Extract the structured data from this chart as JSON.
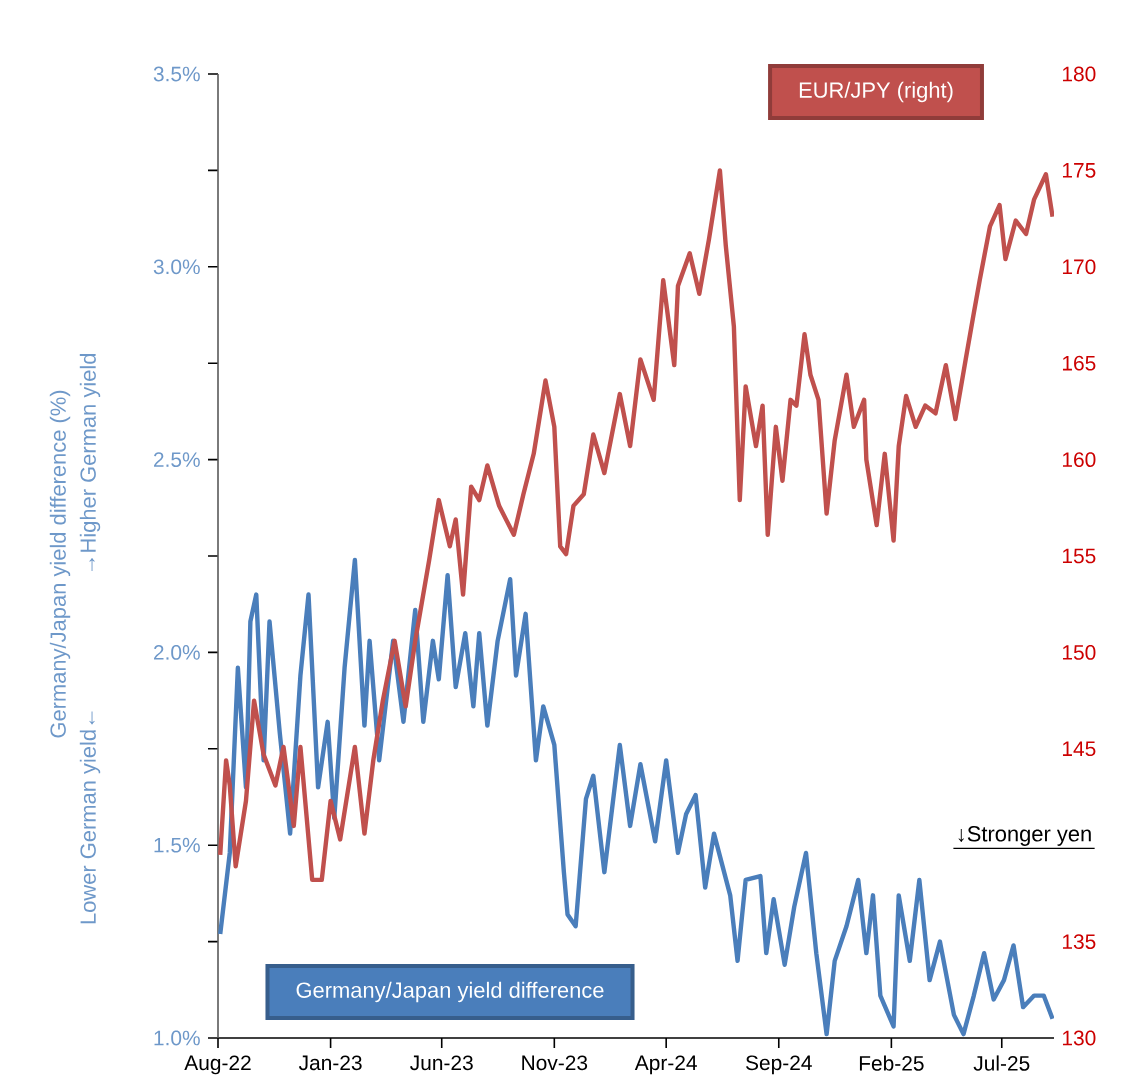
{
  "chart_data": {
    "type": "line",
    "ylabel": "Germany/Japan yield difference (%)",
    "marker": "none",
    "annotations": [
      "Lower German yield←",
      "→Higher German yield",
      "↓Stronger yen"
    ],
    "xlim": [
      "2022-08-01",
      "2025-09-10"
    ],
    "xticks": [
      {
        "value": "2022-08-01",
        "label": "Aug-22"
      },
      {
        "value": "2023-01-01",
        "label": "Jan-23"
      },
      {
        "value": "2023-06-01",
        "label": "Jun-23"
      },
      {
        "value": "2023-11-01",
        "label": "Nov-23"
      },
      {
        "value": "2024-04-01",
        "label": "Apr-24"
      },
      {
        "value": "2024-09-01",
        "label": "Sep-24"
      },
      {
        "value": "2025-02-01",
        "label": "Feb-25"
      },
      {
        "value": "2025-07-01",
        "label": "Jul-25"
      }
    ],
    "ylim": [
      1.0,
      3.5
    ],
    "yticks": [
      {
        "value": 1.0,
        "label": "1.0%"
      },
      {
        "value": 1.25,
        "label": null
      },
      {
        "value": 1.5,
        "label": "1.5%"
      },
      {
        "value": 1.75,
        "label": null
      },
      {
        "value": 2.0,
        "label": "2.0%"
      },
      {
        "value": 2.25,
        "label": null
      },
      {
        "value": 2.5,
        "label": "2.5%"
      },
      {
        "value": 2.75,
        "label": null
      },
      {
        "value": 3.0,
        "label": "3.0%"
      },
      {
        "value": 3.25,
        "label": null
      },
      {
        "value": 3.5,
        "label": "3.5%"
      }
    ],
    "y2lim": [
      130,
      180
    ],
    "y2ticks": [
      130,
      135,
      145,
      150,
      155,
      160,
      165,
      170,
      175,
      180
    ],
    "series": [
      {
        "name": "Germany/Japan yield difference",
        "color": "#4a7ebb",
        "x": [
          "2022-08-04",
          "2022-08-17",
          "2022-08-28",
          "2022-09-08",
          "2022-09-14",
          "2022-09-22",
          "2022-10-02",
          "2022-10-10",
          "2022-10-24",
          "2022-11-07",
          "2022-11-21",
          "2022-12-02",
          "2022-12-15",
          "2022-12-28",
          "2023-01-06",
          "2023-01-20",
          "2023-02-03",
          "2023-02-16",
          "2023-02-23",
          "2023-03-08",
          "2023-03-27",
          "2023-04-10",
          "2023-04-26",
          "2023-05-07",
          "2023-05-20",
          "2023-05-28",
          "2023-06-09",
          "2023-06-20",
          "2023-07-03",
          "2023-07-14",
          "2023-07-22",
          "2023-08-02",
          "2023-08-16",
          "2023-09-02",
          "2023-09-10",
          "2023-09-23",
          "2023-10-07",
          "2023-10-17",
          "2023-11-01",
          "2023-11-14",
          "2023-11-19",
          "2023-11-30",
          "2023-12-14",
          "2023-12-24",
          "2024-01-08",
          "2024-01-29",
          "2024-02-12",
          "2024-02-26",
          "2024-03-17",
          "2024-04-01",
          "2024-04-17",
          "2024-04-28",
          "2024-05-11",
          "2024-05-24",
          "2024-06-05",
          "2024-06-27",
          "2024-07-07",
          "2024-07-18",
          "2024-08-07",
          "2024-08-15",
          "2024-08-25",
          "2024-09-09",
          "2024-09-22",
          "2024-10-08",
          "2024-10-22",
          "2024-11-05",
          "2024-11-16",
          "2024-12-02",
          "2024-12-18",
          "2024-12-29",
          "2025-01-07",
          "2025-01-17",
          "2025-02-04",
          "2025-02-11",
          "2025-02-26",
          "2025-03-11",
          "2025-03-25",
          "2025-04-08",
          "2025-04-27",
          "2025-05-10",
          "2025-05-24",
          "2025-06-07",
          "2025-06-20",
          "2025-07-04",
          "2025-07-17",
          "2025-07-30",
          "2025-08-14",
          "2025-08-27",
          "2025-09-08"
        ],
        "values": [
          1.27,
          1.48,
          1.96,
          1.65,
          2.08,
          2.15,
          1.72,
          2.08,
          1.79,
          1.53,
          1.94,
          2.15,
          1.65,
          1.82,
          1.57,
          1.96,
          2.24,
          1.81,
          2.03,
          1.72,
          2.03,
          1.82,
          2.11,
          1.82,
          2.03,
          1.93,
          2.2,
          1.91,
          2.05,
          1.86,
          2.05,
          1.81,
          2.03,
          2.19,
          1.94,
          2.1,
          1.72,
          1.86,
          1.76,
          1.43,
          1.32,
          1.29,
          1.62,
          1.68,
          1.43,
          1.76,
          1.55,
          1.71,
          1.51,
          1.72,
          1.48,
          1.58,
          1.63,
          1.39,
          1.53,
          1.37,
          1.2,
          1.41,
          1.42,
          1.22,
          1.36,
          1.19,
          1.34,
          1.48,
          1.22,
          1.01,
          1.2,
          1.29,
          1.41,
          1.22,
          1.37,
          1.11,
          1.03,
          1.37,
          1.2,
          1.41,
          1.15,
          1.25,
          1.06,
          1.01,
          1.11,
          1.22,
          1.1,
          1.15,
          1.24,
          1.08,
          1.11,
          1.11,
          1.05
        ]
      },
      {
        "name": "EUR/JPY  (right)",
        "color": "#c0504d",
        "axis": "y2",
        "x": [
          "2022-08-04",
          "2022-08-12",
          "2022-08-17",
          "2022-08-25",
          "2022-09-08",
          "2022-09-19",
          "2022-10-02",
          "2022-10-18",
          "2022-10-29",
          "2022-11-12",
          "2022-11-21",
          "2022-12-07",
          "2022-12-20",
          "2023-01-01",
          "2023-01-14",
          "2023-02-03",
          "2023-02-16",
          "2023-02-28",
          "2023-03-13",
          "2023-03-29",
          "2023-04-13",
          "2023-04-26",
          "2023-05-15",
          "2023-05-28",
          "2023-06-12",
          "2023-06-20",
          "2023-06-30",
          "2023-07-11",
          "2023-07-22",
          "2023-08-02",
          "2023-08-18",
          "2023-09-07",
          "2023-09-20",
          "2023-10-04",
          "2023-10-20",
          "2023-11-01",
          "2023-11-09",
          "2023-11-17",
          "2023-11-27",
          "2023-12-11",
          "2023-12-24",
          "2024-01-08",
          "2024-01-29",
          "2024-02-12",
          "2024-02-26",
          "2024-03-15",
          "2024-03-28",
          "2024-04-12",
          "2024-04-17",
          "2024-05-03",
          "2024-05-16",
          "2024-05-29",
          "2024-06-13",
          "2024-06-21",
          "2024-07-02",
          "2024-07-10",
          "2024-07-18",
          "2024-08-01",
          "2024-08-10",
          "2024-08-17",
          "2024-08-28",
          "2024-09-06",
          "2024-09-17",
          "2024-09-25",
          "2024-10-06",
          "2024-10-14",
          "2024-10-25",
          "2024-11-05",
          "2024-11-16",
          "2024-12-02",
          "2024-12-12",
          "2024-12-26",
          "2024-12-29",
          "2025-01-12",
          "2025-01-23",
          "2025-02-04",
          "2025-02-11",
          "2025-02-21",
          "2025-03-06",
          "2025-03-19",
          "2025-04-02",
          "2025-04-16",
          "2025-04-29",
          "2025-05-13",
          "2025-05-24",
          "2025-06-01",
          "2025-06-15",
          "2025-06-28",
          "2025-07-06",
          "2025-07-20",
          "2025-08-03",
          "2025-08-14",
          "2025-08-30",
          "2025-09-08"
        ],
        "values": [
          139.5,
          144.4,
          143.1,
          138.9,
          142.3,
          147.5,
          144.7,
          143.1,
          145.1,
          141.0,
          145.1,
          138.2,
          138.2,
          142.3,
          140.3,
          145.1,
          140.6,
          144.4,
          147.5,
          150.6,
          147.2,
          150.6,
          154.8,
          157.9,
          155.5,
          156.9,
          153.0,
          158.6,
          157.9,
          159.7,
          157.6,
          156.1,
          158.2,
          160.3,
          164.1,
          161.7,
          155.5,
          155.1,
          157.6,
          158.2,
          161.3,
          159.3,
          163.4,
          160.7,
          165.2,
          163.1,
          169.3,
          164.9,
          169.0,
          170.7,
          168.6,
          171.4,
          175.0,
          171.1,
          166.9,
          157.9,
          163.8,
          160.7,
          162.8,
          156.1,
          161.7,
          158.9,
          163.1,
          162.8,
          166.5,
          164.4,
          163.1,
          157.2,
          161.0,
          164.4,
          161.7,
          163.1,
          160.0,
          156.6,
          160.3,
          155.8,
          160.7,
          163.3,
          161.7,
          162.8,
          162.4,
          164.9,
          162.1,
          165.2,
          167.6,
          169.3,
          172.1,
          173.2,
          170.4,
          172.4,
          171.7,
          173.5,
          174.8,
          172.6
        ]
      }
    ]
  }
}
